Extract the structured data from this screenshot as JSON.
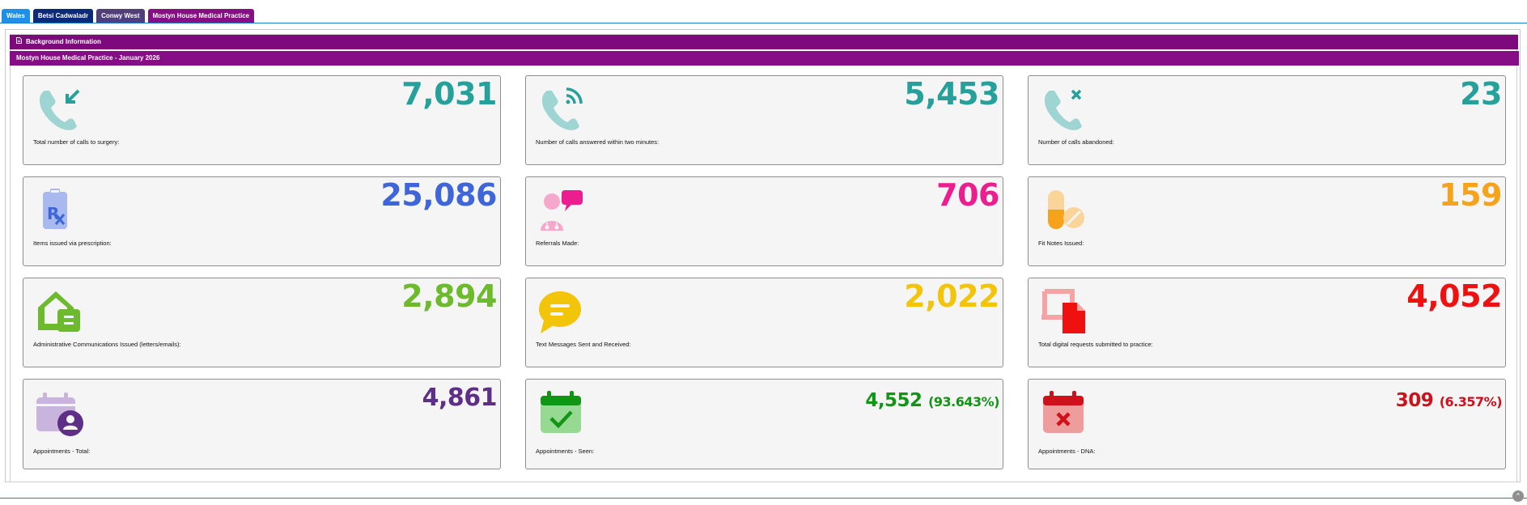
{
  "tabs": [
    {
      "label": "Wales",
      "color": "#1e90e8"
    },
    {
      "label": "Betsi Cadwaladr",
      "color": "#0b2a7a"
    },
    {
      "label": "Conwy West",
      "color": "#4f3f7f"
    },
    {
      "label": "Mostyn House Medical Practice",
      "color": "#860f86"
    }
  ],
  "section": {
    "background_label": "Background Information",
    "period_title": "Mostyn House Medical Practice - January 2026"
  },
  "stats": [
    {
      "value": "7,031",
      "label": "Total number of calls to surgery:",
      "color": "#26a09b",
      "icon": "phone-incoming-icon"
    },
    {
      "value": "5,453",
      "label": "Number of calls answered within two minutes:",
      "color": "#26a09b",
      "icon": "phone-answered-icon"
    },
    {
      "value": "23",
      "label": "Number of calls abandoned:",
      "color": "#26a09b",
      "icon": "phone-missed-icon"
    },
    {
      "value": "25,086",
      "label": "Items issued via prescription:",
      "color": "#3f66d8",
      "icon": "prescription-icon"
    },
    {
      "value": "706",
      "label": "Referrals Made:",
      "color": "#ec1e8f",
      "icon": "referral-icon"
    },
    {
      "value": "159",
      "label": "Fit Notes Issued:",
      "color": "#f7a21b",
      "icon": "pills-icon"
    },
    {
      "value": "2,894",
      "label": "Administrative Communications Issued (letters/emails):",
      "color": "#6dbb2d",
      "icon": "mailbox-icon"
    },
    {
      "value": "2,022",
      "label": "Text Messages Sent and Received:",
      "color": "#f2c40a",
      "icon": "message-icon"
    },
    {
      "value": "4,052",
      "label": "Total digital requests submitted to practice:",
      "color": "#ef1010",
      "icon": "digital-request-icon"
    },
    {
      "value": "4,861",
      "pct": "",
      "label": "Appointments - Total:",
      "color": "#5d2f86",
      "icon": "calendar-user-icon"
    },
    {
      "value": "4,552",
      "pct": "(93.643%)",
      "label": "Appointments - Seen:",
      "color": "#129414",
      "icon": "calendar-check-icon"
    },
    {
      "value": "309",
      "pct": "(6.357%)",
      "label": "Appointments - DNA:",
      "color": "#d0101a",
      "icon": "calendar-x-icon"
    }
  ]
}
